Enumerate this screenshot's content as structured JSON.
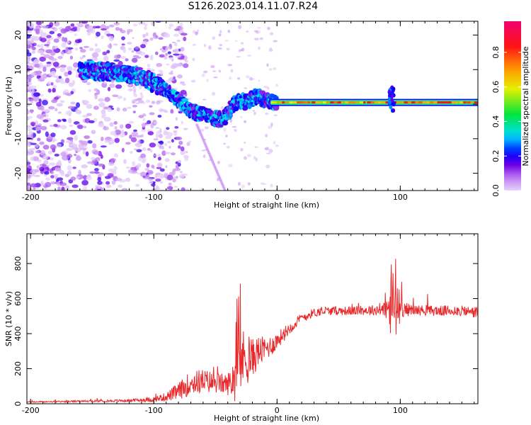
{
  "figure": {
    "title": "S126.2023.014.11.07.R24"
  },
  "chart_data": [
    {
      "type": "heatmap",
      "xlabel": "Height of straight line (km)",
      "ylabel": "Frequency (Hz)",
      "xlim": [
        -203,
        163
      ],
      "ylim": [
        -25,
        24
      ],
      "xticks": [
        -200,
        -100,
        0,
        100
      ],
      "yticks": [
        20,
        10,
        0,
        -10,
        -20
      ],
      "colorbar": {
        "label": "Normalized spectral amplitude",
        "ticks": [
          "0.0",
          "0.2",
          "0.4",
          "0.6",
          "0.8"
        ],
        "range": [
          0,
          0.98
        ]
      },
      "ridge": {
        "x": [
          -155,
          -140,
          -125,
          -110,
          -100,
          -90,
          -80,
          -70,
          -60,
          -50,
          -45,
          -40,
          -35,
          -30,
          -25,
          -20,
          -15,
          -10,
          -5,
          0,
          20,
          40,
          60,
          80,
          87,
          92,
          95,
          100,
          120,
          140,
          163
        ],
        "y": [
          9.5,
          9.5,
          9,
          8,
          6,
          4,
          1,
          -2,
          -3,
          -4,
          -4.5,
          -3,
          0,
          1,
          0.5,
          1.5,
          2.5,
          1,
          0.5,
          0.5,
          0.5,
          0.5,
          0.5,
          0.5,
          0.5,
          3,
          -1,
          0.5,
          0.5,
          0.5,
          0.5
        ]
      }
    },
    {
      "type": "line",
      "xlabel": "Height of straight line (km)",
      "ylabel": "SNR (10 * v/v)",
      "xlim": [
        -203,
        163
      ],
      "ylim": [
        0,
        970
      ],
      "xticks": [
        -200,
        -100,
        0,
        100
      ],
      "yticks": [
        0,
        200,
        400,
        600,
        800
      ],
      "series": [
        {
          "color": "#e8282b",
          "x": [
            -203,
            -180,
            -160,
            -140,
            -120,
            -100,
            -90,
            -80,
            -70,
            -60,
            -50,
            -40,
            -35,
            -30,
            -25,
            -20,
            -15,
            -10,
            -5,
            0,
            10,
            20,
            30,
            40,
            60,
            80,
            90,
            93,
            95,
            97,
            100,
            110,
            130,
            150,
            163
          ],
          "y": [
            10,
            12,
            14,
            16,
            18,
            25,
            40,
            70,
            120,
            130,
            120,
            110,
            150,
            250,
            260,
            260,
            300,
            310,
            330,
            360,
            430,
            490,
            520,
            530,
            530,
            535,
            540,
            550,
            600,
            560,
            540,
            535,
            530,
            530,
            520
          ],
          "noise": [
            4,
            4,
            5,
            6,
            8,
            15,
            25,
            50,
            70,
            70,
            60,
            60,
            150,
            190,
            160,
            110,
            90,
            70,
            60,
            50,
            35,
            30,
            25,
            25,
            25,
            30,
            60,
            300,
            350,
            250,
            50,
            30,
            30,
            30,
            35
          ]
        }
      ]
    }
  ]
}
